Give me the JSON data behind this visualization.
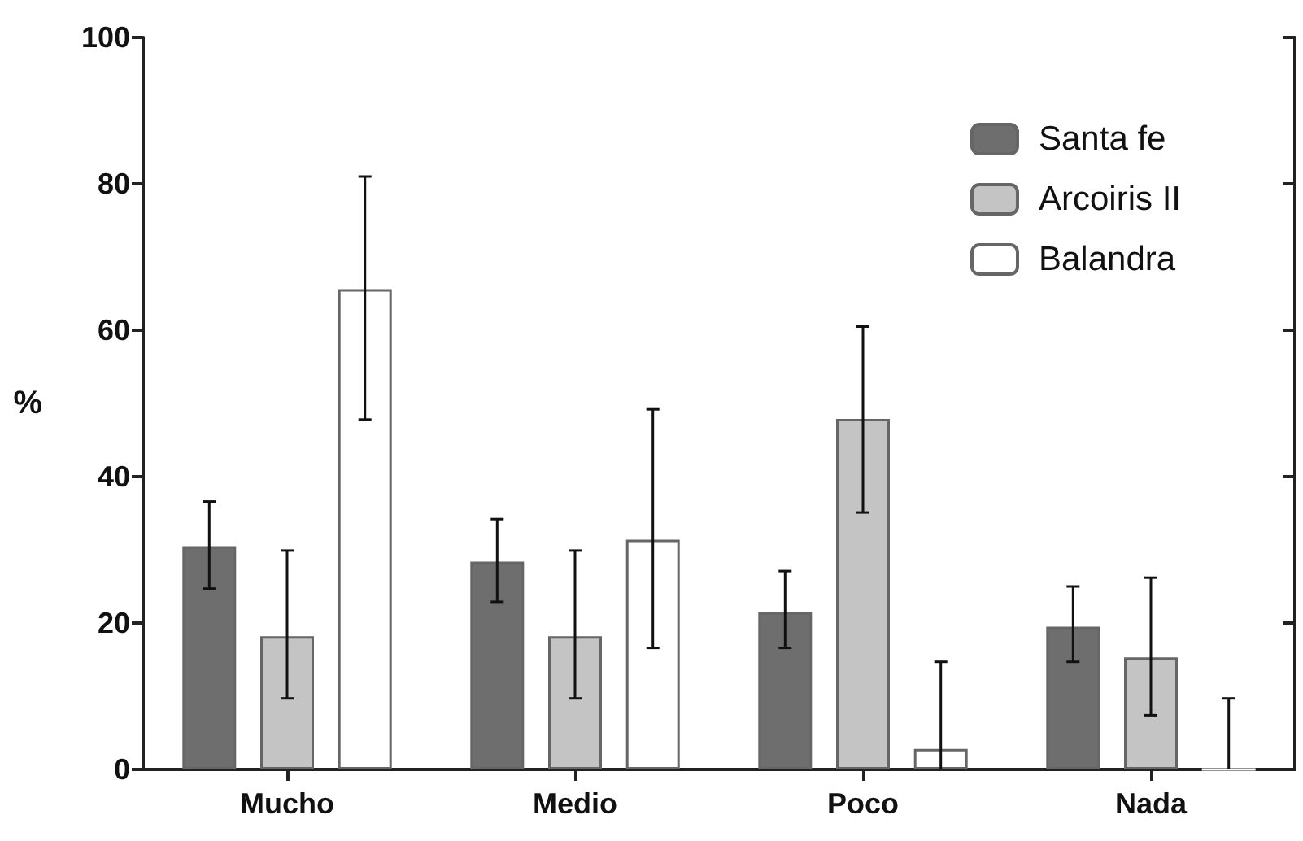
{
  "chart_data": {
    "type": "bar",
    "ylabel": "%",
    "categories": [
      "Mucho",
      "Medio",
      "Poco",
      "Nada"
    ],
    "series": [
      {
        "name": "Santa fe",
        "color": "#6e6e6e",
        "values": [
          30.5,
          28.4,
          21.5,
          19.5
        ],
        "errors": [
          [
            24.7,
            36.6
          ],
          [
            22.9,
            34.2
          ],
          [
            16.6,
            27.1
          ],
          [
            14.7,
            25
          ]
        ]
      },
      {
        "name": "Arcoiris II",
        "color": "#c4c4c4",
        "values": [
          18.2,
          18.2,
          47.9,
          15.3
        ],
        "errors": [
          [
            9.7,
            29.9
          ],
          [
            9.7,
            29.9
          ],
          [
            35.1,
            60.5
          ],
          [
            7.4,
            26.2
          ]
        ]
      },
      {
        "name": "Balandra",
        "color": "#ffffff",
        "values": [
          65.6,
          31.4,
          2.8,
          0
        ],
        "errors": [
          [
            47.8,
            81
          ],
          [
            16.6,
            49.2
          ],
          [
            0,
            14.7
          ],
          [
            0,
            9.7
          ]
        ]
      }
    ],
    "ylim": [
      0,
      100
    ],
    "yticks": [
      0,
      20,
      40,
      60,
      80,
      100
    ],
    "grid": false,
    "legend": "top right"
  }
}
